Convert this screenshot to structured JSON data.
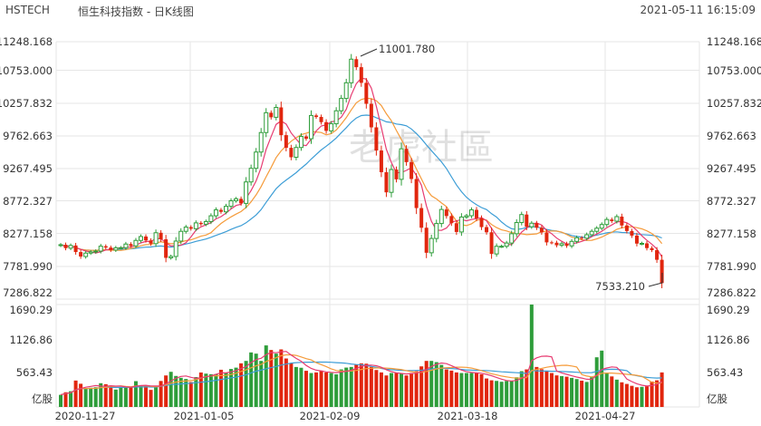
{
  "header": {
    "symbol": "HSTECH",
    "title": "恒生科技指数 - 日K线图",
    "timestamp": "2021-05-11 16:15:09"
  },
  "watermark": "老虎社區",
  "colors": {
    "up": "#2e9d3a",
    "down": "#e1260e",
    "ma5": "#e73b71",
    "ma10": "#f59b3a",
    "ma20": "#3c9dd6",
    "grid": "#e6e6e6"
  },
  "chart_data": {
    "type": "candlestick",
    "price_axis": {
      "ticks": [
        "11248.168",
        "10753.000",
        "10257.832",
        "9762.663",
        "9267.495",
        "8772.327",
        "8277.158",
        "7781.990",
        "7286.822"
      ],
      "range": [
        7286.822,
        11248.168
      ]
    },
    "volume_axis": {
      "ticks": [
        "1690.29",
        "1126.86",
        "563.43",
        "亿股"
      ],
      "max": 1690.29
    },
    "x_ticks": [
      "2020-11-27",
      "2021-01-05",
      "2021-02-09",
      "2021-03-18",
      "2021-04-27"
    ],
    "annotations": {
      "high_label": "11001.780",
      "low_label": "7533.210"
    },
    "closes": [
      8124,
      8071,
      8112,
      8011,
      7942,
      7995,
      8013,
      8026,
      8101,
      8080,
      8042,
      8076,
      8078,
      8134,
      8106,
      8190,
      8250,
      8190,
      8140,
      8308,
      8207,
      7922,
      7943,
      8180,
      8330,
      8395,
      8370,
      8460,
      8440,
      8480,
      8569,
      8660,
      8630,
      8715,
      8800,
      8830,
      8760,
      9090,
      9300,
      9550,
      9850,
      10155,
      10085,
      10237,
      9810,
      9615,
      9470,
      9620,
      9790,
      9755,
      10113,
      10090,
      10010,
      9876,
      9985,
      10185,
      10375,
      10616,
      10979,
      10856,
      10615,
      10292,
      9930,
      9574,
      9240,
      8930,
      9280,
      9130,
      9600,
      9395,
      9135,
      8688,
      8385,
      8000,
      8220,
      8450,
      8666,
      8565,
      8455,
      8320,
      8550,
      8570,
      8660,
      8530,
      8395,
      8315,
      7982,
      8100,
      8100,
      8150,
      8293,
      8465,
      8588,
      8400,
      8455,
      8385,
      8313,
      8160,
      8155,
      8115,
      8140,
      8106,
      8175,
      8231,
      8224,
      8278,
      8330,
      8378,
      8435,
      8512,
      8486,
      8556,
      8420,
      8335,
      8264,
      8141,
      8145,
      8072,
      8040,
      7892,
      7533
    ],
    "volumes": [
      200,
      243,
      260,
      436,
      383,
      305,
      317,
      326,
      392,
      376,
      341,
      287,
      326,
      330,
      336,
      426,
      347,
      347,
      282,
      325,
      429,
      520,
      580,
      512,
      481,
      462,
      411,
      493,
      569,
      550,
      540,
      543,
      614,
      563,
      627,
      649,
      720,
      760,
      900,
      880,
      760,
      1016,
      940,
      880,
      950,
      800,
      718,
      660,
      647,
      597,
      560,
      570,
      600,
      570,
      560,
      538,
      620,
      650,
      660,
      700,
      720,
      714,
      660,
      610,
      570,
      520,
      560,
      560,
      560,
      520,
      560,
      590,
      670,
      760,
      760,
      740,
      694,
      620,
      600,
      570,
      560,
      560,
      560,
      560,
      540,
      470,
      440,
      430,
      416,
      430,
      428,
      490,
      590,
      620,
      1690,
      660,
      623,
      600,
      560,
      521,
      510,
      500,
      480,
      460,
      434,
      413,
      490,
      820,
      930,
      560,
      504,
      451,
      407,
      380,
      349,
      325,
      332,
      340,
      420,
      440,
      570
    ]
  }
}
